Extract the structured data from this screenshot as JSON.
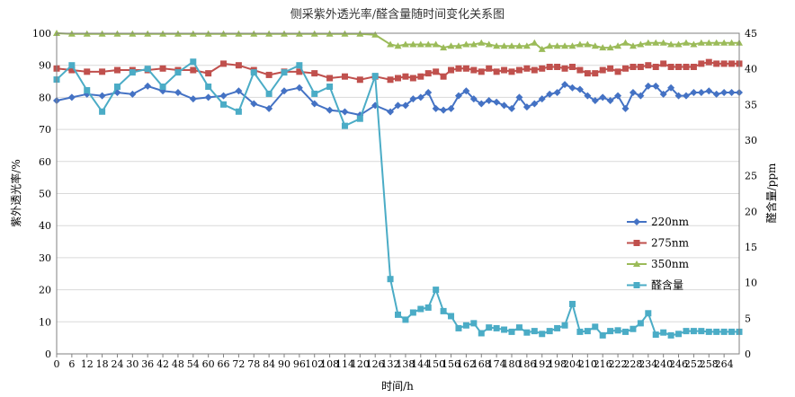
{
  "chart_data": {
    "type": "line",
    "title": "侧采紫外透光率/醛含量随时间变化关系图",
    "xlabel": "时间/h",
    "ylabel_left": "紫外透光率/%",
    "ylabel_right": "醛含量/ppm",
    "xlim": [
      0,
      270
    ],
    "ylim_left": [
      0,
      100
    ],
    "ylim_right": [
      0,
      45
    ],
    "x_ticks": [
      0,
      6,
      12,
      18,
      24,
      30,
      36,
      42,
      48,
      54,
      60,
      66,
      72,
      78,
      84,
      90,
      96,
      102,
      108,
      114,
      120,
      126,
      132,
      138,
      144,
      150,
      156,
      162,
      168,
      174,
      180,
      186,
      192,
      198,
      204,
      210,
      216,
      222,
      228,
      234,
      240,
      246,
      252,
      258,
      264
    ],
    "y_left_ticks": [
      0,
      10,
      20,
      30,
      40,
      50,
      60,
      70,
      80,
      90,
      100
    ],
    "y_right_ticks": [
      0,
      5,
      10,
      15,
      20,
      25,
      30,
      35,
      40,
      45
    ],
    "grid": true,
    "legend_position": "right",
    "series": [
      {
        "name": "220nm",
        "axis": "left",
        "color": "#4472C4",
        "marker": "diamond",
        "x": [
          0,
          6,
          12,
          18,
          24,
          30,
          36,
          42,
          48,
          54,
          60,
          66,
          72,
          78,
          84,
          90,
          96,
          102,
          108,
          114,
          120,
          126,
          132,
          135,
          138,
          141,
          144,
          147,
          150,
          153,
          156,
          159,
          162,
          165,
          168,
          171,
          174,
          177,
          180,
          183,
          186,
          189,
          192,
          195,
          198,
          201,
          204,
          207,
          210,
          213,
          216,
          219,
          222,
          225,
          228,
          231,
          234,
          237,
          240,
          243,
          246,
          249,
          252,
          255,
          258,
          261,
          264,
          267,
          270
        ],
        "values": [
          79,
          80,
          81,
          80.5,
          81.5,
          81,
          83.5,
          82,
          81.5,
          79.5,
          80,
          80.5,
          82,
          78,
          76.5,
          82,
          83,
          78,
          76,
          75.5,
          74.5,
          77.5,
          75.5,
          77.5,
          77.5,
          79.5,
          80,
          81.5,
          76.5,
          76,
          76.5,
          80.5,
          82,
          79.5,
          78,
          79,
          78.5,
          77.5,
          76.5,
          80,
          77,
          78,
          79.5,
          81,
          81.5,
          84,
          83,
          82.5,
          80.5,
          79,
          80,
          79,
          80.5,
          76.5,
          81.5,
          80.5,
          83.5,
          83.5,
          81,
          83,
          80.5,
          80.5,
          81.5,
          81.5,
          82,
          81,
          81.5,
          81.5,
          81.5
        ]
      },
      {
        "name": "275nm",
        "axis": "left",
        "color": "#C0504D",
        "marker": "square",
        "x": [
          0,
          6,
          12,
          18,
          24,
          30,
          36,
          42,
          48,
          54,
          60,
          66,
          72,
          78,
          84,
          90,
          96,
          102,
          108,
          114,
          120,
          126,
          132,
          135,
          138,
          141,
          144,
          147,
          150,
          153,
          156,
          159,
          162,
          165,
          168,
          171,
          174,
          177,
          180,
          183,
          186,
          189,
          192,
          195,
          198,
          201,
          204,
          207,
          210,
          213,
          216,
          219,
          222,
          225,
          228,
          231,
          234,
          237,
          240,
          243,
          246,
          249,
          252,
          255,
          258,
          261,
          264,
          267,
          270
        ],
        "values": [
          89,
          88.5,
          88,
          88,
          88.5,
          88.5,
          88.5,
          89,
          88.5,
          88.5,
          87.5,
          90.5,
          90,
          88.5,
          87,
          88,
          88,
          87.5,
          86,
          86.5,
          85.5,
          86.5,
          85.5,
          86,
          86.5,
          86,
          86.5,
          87.5,
          88,
          86.5,
          88.5,
          89,
          89,
          88.5,
          88,
          89,
          88,
          88.5,
          88,
          88.5,
          89,
          88.5,
          89,
          89.5,
          89.5,
          89,
          89.5,
          88.5,
          87.5,
          87.5,
          88.5,
          89,
          88,
          89,
          89.5,
          89.5,
          90,
          89.5,
          90.5,
          89.5,
          89.5,
          89.5,
          89.5,
          90.5,
          91,
          90.5,
          90.5,
          90.5,
          90.5
        ]
      },
      {
        "name": "350nm",
        "axis": "left",
        "color": "#9BBB59",
        "marker": "triangle",
        "x": [
          0,
          6,
          12,
          18,
          24,
          30,
          36,
          42,
          48,
          54,
          60,
          66,
          72,
          78,
          84,
          90,
          96,
          102,
          108,
          114,
          120,
          126,
          132,
          135,
          138,
          141,
          144,
          147,
          150,
          153,
          156,
          159,
          162,
          165,
          168,
          171,
          174,
          177,
          180,
          183,
          186,
          189,
          192,
          195,
          198,
          201,
          204,
          207,
          210,
          213,
          216,
          219,
          222,
          225,
          228,
          231,
          234,
          237,
          240,
          243,
          246,
          249,
          252,
          255,
          258,
          261,
          264,
          267,
          270
        ],
        "values": [
          100,
          99.8,
          99.8,
          99.8,
          99.8,
          99.8,
          99.8,
          99.8,
          99.8,
          99.8,
          99.8,
          99.8,
          99.8,
          99.8,
          99.8,
          99.8,
          99.8,
          99.8,
          99.8,
          99.8,
          99.8,
          99.5,
          96.5,
          96,
          96.5,
          96.5,
          96.5,
          96.5,
          96.5,
          95.5,
          96,
          96,
          96.5,
          96.5,
          97,
          96.5,
          96,
          96,
          96,
          96,
          96,
          97,
          95,
          96,
          96,
          96,
          96,
          96.5,
          96.5,
          96,
          95.5,
          95.5,
          96,
          97,
          96,
          96.5,
          97,
          97,
          97,
          96.5,
          96.5,
          97,
          96.5,
          97,
          97,
          97,
          97,
          97,
          97
        ]
      },
      {
        "name": "醛含量",
        "axis": "right",
        "color": "#4BACC6",
        "marker": "square",
        "x": [
          0,
          6,
          12,
          18,
          24,
          30,
          36,
          42,
          48,
          54,
          60,
          66,
          72,
          78,
          84,
          90,
          96,
          102,
          108,
          114,
          120,
          126,
          132,
          135,
          138,
          141,
          144,
          147,
          150,
          153,
          156,
          159,
          162,
          165,
          168,
          171,
          174,
          177,
          180,
          183,
          186,
          189,
          192,
          195,
          198,
          201,
          204,
          207,
          210,
          213,
          216,
          219,
          222,
          225,
          228,
          231,
          234,
          237,
          240,
          243,
          246,
          249,
          252,
          255,
          258,
          261,
          264,
          267,
          270
        ],
        "values": [
          38.5,
          40.5,
          37,
          34,
          37.5,
          39.5,
          40,
          37.5,
          39.5,
          41,
          37.5,
          35,
          34,
          39.5,
          36.5,
          39.5,
          40.5,
          36.5,
          37.5,
          32,
          33,
          39,
          10.5,
          5.5,
          4.8,
          5.8,
          6.3,
          6.5,
          9,
          6,
          5.3,
          3.6,
          4,
          4.3,
          2.9,
          3.7,
          3.6,
          3.4,
          3.1,
          3.7,
          3,
          3.2,
          2.8,
          3.2,
          3.6,
          4,
          7,
          3.1,
          3.2,
          3.8,
          2.6,
          3.2,
          3.3,
          3.1,
          3.5,
          4.3,
          5.7,
          2.7,
          3,
          2.6,
          2.8,
          3.2,
          3.2,
          3.2,
          3.1,
          3.1,
          3.1,
          3.1,
          3.1
        ]
      }
    ]
  }
}
